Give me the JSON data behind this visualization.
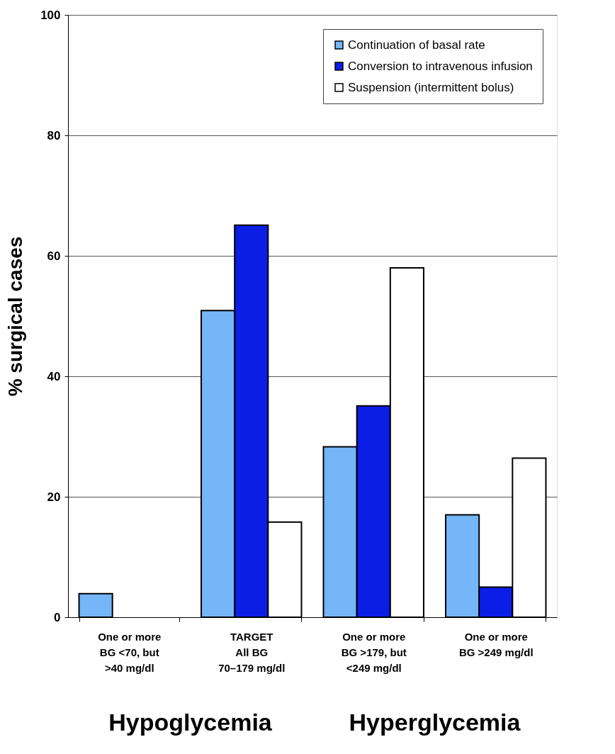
{
  "chart_data": {
    "type": "bar",
    "ylabel": "% surgical cases",
    "categories": [
      "One or more\nBG <70, but\n>40 mg/dl",
      "TARGET\nAll BG\n70–179 mg/dl",
      "One or more\nBG >179, but\n<249 mg/dl",
      "One or more\nBG >249 mg/dl"
    ],
    "series": [
      {
        "name": "Continuation of basal rate",
        "color": "#74b6f7",
        "values": [
          3.9,
          50.9,
          28.3,
          17.0
        ]
      },
      {
        "name": "Conversion to intravenous infusion",
        "color": "#0a1ee6",
        "values": [
          null,
          65.1,
          35.1,
          5.0
        ]
      },
      {
        "name": "Suspension (intermittent bolus)",
        "color": "#ffffff",
        "values": [
          null,
          15.8,
          58.0,
          26.4
        ]
      }
    ],
    "ylim": [
      0,
      100
    ],
    "yticks": [
      0,
      20,
      40,
      60,
      80,
      100
    ],
    "grid": "y",
    "legend": "top right",
    "annotations": [
      "Hypoglycemia",
      "Hyperglycemia"
    ]
  }
}
